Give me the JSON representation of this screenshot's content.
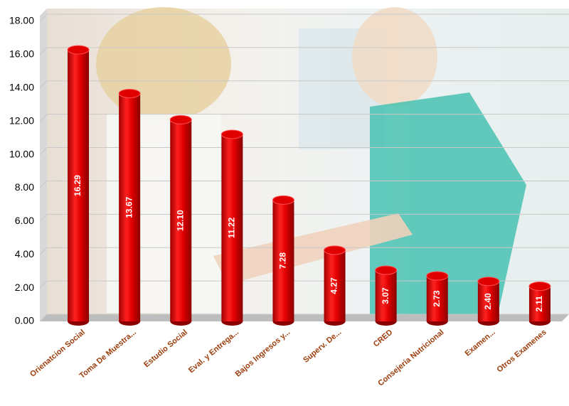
{
  "chart_data": {
    "type": "bar",
    "categories": [
      "Orienatcion Social",
      "Toma De Muestra...",
      "Estudio Social",
      "Eval. y Entrega...",
      "Bajos Ingresos y...",
      "Superv. De...",
      "CRED",
      "Consejeria Nutricional",
      "Examen...",
      "Otros Examenes"
    ],
    "values": [
      16.29,
      13.67,
      12.1,
      11.22,
      7.28,
      4.27,
      3.07,
      2.73,
      2.4,
      2.11
    ],
    "value_labels": [
      "16.29",
      "13.67",
      "12.10",
      "11.22",
      "7.28",
      "4.27",
      "3.07",
      "2.73",
      "2.40",
      "2.11"
    ],
    "color": "#e00000",
    "ylim": [
      0,
      18
    ],
    "yticks": [
      {
        "value": 0,
        "label": "0.00"
      },
      {
        "value": 2,
        "label": "2.00"
      },
      {
        "value": 4,
        "label": "4.00"
      },
      {
        "value": 6,
        "label": "6.00"
      },
      {
        "value": 8,
        "label": "8.00"
      },
      {
        "value": 10,
        "label": "10.00"
      },
      {
        "value": 12,
        "label": "12.00"
      },
      {
        "value": 14,
        "label": "14.00"
      },
      {
        "value": 16,
        "label": "16.00"
      },
      {
        "value": 18,
        "label": "18.00"
      }
    ],
    "grid": true
  }
}
